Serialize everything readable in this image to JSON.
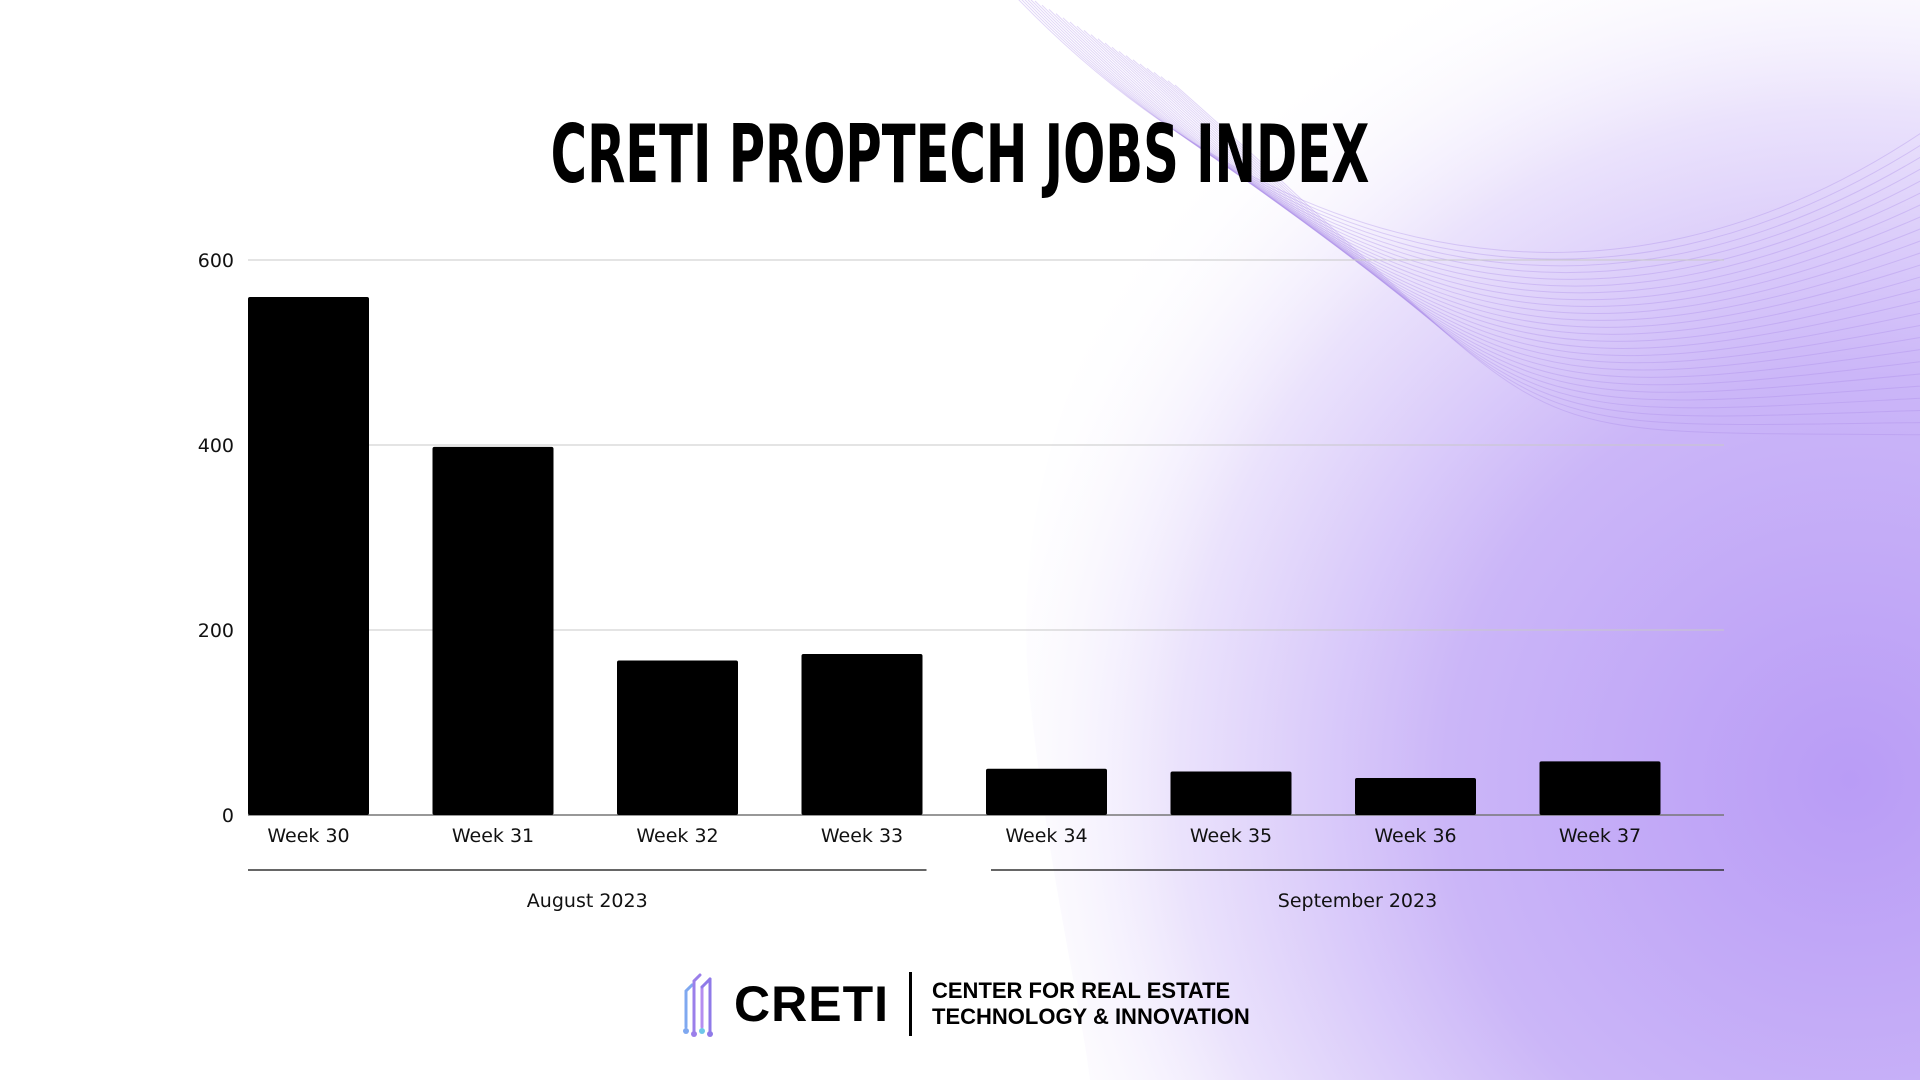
{
  "title": "CRETI PROPTECH JOBS INDEX",
  "chart_data": {
    "type": "bar",
    "title": "",
    "xlabel": "",
    "ylabel": "",
    "ylim": [
      0,
      600
    ],
    "yticks": [
      0,
      200,
      400,
      600
    ],
    "categories": [
      "Week 30",
      "Week 31",
      "Week 32",
      "Week 33",
      "Week 34",
      "Week 35",
      "Week 36",
      "Week 37"
    ],
    "values": [
      560,
      398,
      167,
      174,
      50,
      47,
      40,
      58
    ],
    "groups": [
      {
        "label": "August 2023",
        "categories": [
          "Week 30",
          "Week 31",
          "Week 32",
          "Week 33"
        ]
      },
      {
        "label": "September 2023",
        "categories": [
          "Week 34",
          "Week 35",
          "Week 36",
          "Week 37"
        ]
      }
    ],
    "grid": true,
    "bar_color": "#000000"
  },
  "logo": {
    "wordmark": "CRETI",
    "subtitle_line1": "CENTER FOR REAL ESTATE",
    "subtitle_line2": "TECHNOLOGY & INNOVATION"
  },
  "colors": {
    "accent": "#b89cf5",
    "accent_light": "#e6dcfb"
  }
}
